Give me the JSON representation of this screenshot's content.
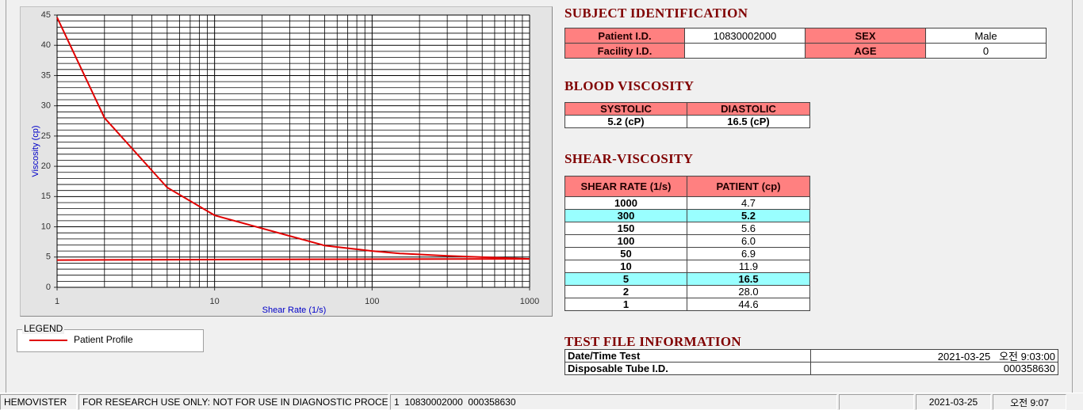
{
  "chart_data": {
    "type": "line",
    "x_label": "Shear Rate (1/s)",
    "y_label": "Viscosity (cp)",
    "log_x": true,
    "xlim": [
      1,
      1000
    ],
    "xticks": [
      1,
      10,
      100,
      1000
    ],
    "ylim": [
      0,
      45
    ],
    "yticks": [
      0,
      5,
      10,
      15,
      20,
      25,
      30,
      35,
      40,
      45
    ],
    "grid": true,
    "minor_grid": true,
    "legend_title": "LEGEND",
    "series": [
      {
        "name": "Patient Profile",
        "color": "#e00000",
        "x": [
          1,
          2,
          5,
          10,
          50,
          100,
          150,
          300,
          1000
        ],
        "values": [
          44.6,
          28.0,
          16.5,
          11.9,
          6.9,
          6.0,
          5.6,
          5.2,
          4.7
        ]
      },
      {
        "color": "#e00000",
        "x": [
          1,
          15,
          1000
        ],
        "values": [
          4.5,
          4.6,
          4.7
        ]
      }
    ]
  },
  "subject": {
    "title": "SUBJECT IDENTIFICATION",
    "rows": [
      [
        "Patient I.D.",
        "10830002000",
        "SEX",
        "Male"
      ],
      [
        "Facility I.D.",
        null,
        "AGE",
        "0"
      ]
    ]
  },
  "blood_viscosity": {
    "title": "BLOOD VISCOSITY",
    "header": [
      "SYSTOLIC",
      "DIASTOLIC"
    ],
    "row": [
      "5.2 (cP)",
      "16.5 (cP)"
    ]
  },
  "shear_viscosity": {
    "title": "SHEAR-VISCOSITY",
    "header": [
      "SHEAR RATE (1/s)",
      "PATIENT (cp)"
    ],
    "rows": [
      {
        "cells": [
          "1000",
          "4.7"
        ],
        "highlight": false
      },
      {
        "cells": [
          "300",
          "5.2"
        ],
        "highlight": true
      },
      {
        "cells": [
          "150",
          "5.6"
        ],
        "highlight": false
      },
      {
        "cells": [
          "100",
          "6.0"
        ],
        "highlight": false
      },
      {
        "cells": [
          "50",
          "6.9"
        ],
        "highlight": false
      },
      {
        "cells": [
          "10",
          "11.9"
        ],
        "highlight": false
      },
      {
        "cells": [
          "5",
          "16.5"
        ],
        "highlight": true
      },
      {
        "cells": [
          "2",
          "28.0"
        ],
        "highlight": false
      },
      {
        "cells": [
          "1",
          "44.6"
        ],
        "highlight": false
      }
    ]
  },
  "test_file": {
    "title": "TEST FILE INFORMATION",
    "rows": [
      [
        "Date/Time Test",
        "2021-03-25   오전 9:03:00"
      ],
      [
        "Disposable Tube I.D.",
        "000358630"
      ]
    ]
  },
  "status_bar": [
    "HEMOVISTER",
    "FOR RESEARCH USE ONLY: NOT FOR USE IN DIAGNOSTIC PROCEDURES",
    "1  10830002000  000358630",
    "2021-03-25",
    "오전 9:07"
  ]
}
